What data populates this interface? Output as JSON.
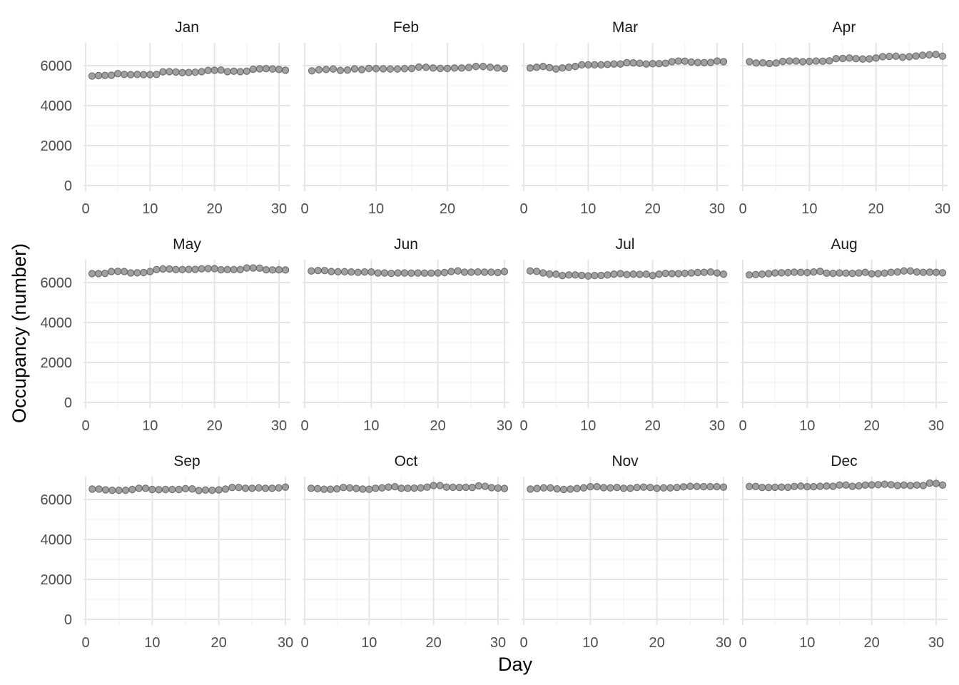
{
  "chart_data": {
    "type": "scatter",
    "xlabel": "Day",
    "ylabel": "Occupancy (number)",
    "ylim": [
      0,
      7000
    ],
    "y_ticks": [
      0,
      2000,
      4000,
      6000
    ],
    "grid": true,
    "point_color": "#808080",
    "point_edge_color": "#5a5a5a",
    "panels": [
      {
        "month": "Jan",
        "xlim": [
          0,
          31
        ],
        "x_ticks": [
          0,
          10,
          20,
          30
        ],
        "values": [
          5480,
          5500,
          5510,
          5520,
          5600,
          5560,
          5550,
          5560,
          5550,
          5550,
          5560,
          5690,
          5700,
          5680,
          5650,
          5660,
          5670,
          5700,
          5760,
          5770,
          5780,
          5700,
          5720,
          5700,
          5720,
          5820,
          5840,
          5850,
          5830,
          5810,
          5770
        ]
      },
      {
        "month": "Feb",
        "xlim": [
          0,
          28
        ],
        "x_ticks": [
          0,
          10,
          20
        ],
        "values": [
          5740,
          5790,
          5810,
          5830,
          5760,
          5780,
          5840,
          5800,
          5860,
          5850,
          5840,
          5830,
          5830,
          5850,
          5860,
          5930,
          5920,
          5880,
          5860,
          5860,
          5880,
          5880,
          5910,
          5960,
          5960,
          5920,
          5880,
          5850
        ]
      },
      {
        "month": "Mar",
        "xlim": [
          0,
          31
        ],
        "x_ticks": [
          0,
          10,
          20,
          30
        ],
        "values": [
          5880,
          5920,
          5960,
          5900,
          5830,
          5880,
          5920,
          5960,
          6040,
          6040,
          6040,
          6040,
          6060,
          6080,
          6080,
          6150,
          6140,
          6120,
          6080,
          6100,
          6100,
          6120,
          6200,
          6230,
          6220,
          6180,
          6160,
          6150,
          6160,
          6230,
          6200
        ]
      },
      {
        "month": "Apr",
        "xlim": [
          0,
          30
        ],
        "x_ticks": [
          0,
          10,
          20,
          30
        ],
        "values": [
          6200,
          6130,
          6140,
          6110,
          6130,
          6210,
          6230,
          6230,
          6200,
          6210,
          6230,
          6220,
          6240,
          6350,
          6360,
          6380,
          6350,
          6330,
          6340,
          6380,
          6450,
          6460,
          6470,
          6420,
          6450,
          6480,
          6520,
          6540,
          6560,
          6470
        ]
      },
      {
        "month": "May",
        "xlim": [
          0,
          31
        ],
        "x_ticks": [
          0,
          10,
          20,
          30
        ],
        "values": [
          6450,
          6450,
          6460,
          6550,
          6560,
          6550,
          6480,
          6490,
          6500,
          6550,
          6650,
          6680,
          6680,
          6650,
          6650,
          6660,
          6660,
          6690,
          6700,
          6700,
          6640,
          6650,
          6650,
          6650,
          6730,
          6730,
          6720,
          6640,
          6630,
          6640,
          6630
        ]
      },
      {
        "month": "Jun",
        "xlim": [
          0,
          30
        ],
        "x_ticks": [
          0,
          10,
          20,
          30
        ],
        "values": [
          6580,
          6600,
          6600,
          6550,
          6540,
          6540,
          6530,
          6510,
          6530,
          6530,
          6480,
          6480,
          6460,
          6480,
          6480,
          6470,
          6480,
          6470,
          6470,
          6480,
          6500,
          6550,
          6580,
          6520,
          6520,
          6530,
          6520,
          6520,
          6500,
          6550
        ]
      },
      {
        "month": "Jul",
        "xlim": [
          0,
          31
        ],
        "x_ticks": [
          0,
          10,
          20,
          30
        ],
        "values": [
          6580,
          6560,
          6480,
          6430,
          6420,
          6350,
          6380,
          6380,
          6360,
          6330,
          6350,
          6360,
          6380,
          6420,
          6450,
          6400,
          6420,
          6410,
          6420,
          6350,
          6420,
          6460,
          6450,
          6450,
          6460,
          6480,
          6500,
          6510,
          6530,
          6480,
          6420
        ]
      },
      {
        "month": "Aug",
        "xlim": [
          0,
          31
        ],
        "x_ticks": [
          0,
          10,
          20,
          30
        ],
        "values": [
          6380,
          6400,
          6420,
          6450,
          6480,
          6490,
          6500,
          6520,
          6510,
          6500,
          6530,
          6560,
          6470,
          6460,
          6480,
          6470,
          6460,
          6480,
          6510,
          6440,
          6450,
          6470,
          6510,
          6530,
          6580,
          6580,
          6530,
          6510,
          6520,
          6510,
          6490
        ]
      },
      {
        "month": "Sep",
        "xlim": [
          0,
          30
        ],
        "x_ticks": [
          0,
          10,
          20,
          30
        ],
        "values": [
          6520,
          6520,
          6480,
          6460,
          6460,
          6460,
          6500,
          6560,
          6560,
          6500,
          6490,
          6500,
          6500,
          6500,
          6540,
          6530,
          6450,
          6470,
          6460,
          6480,
          6520,
          6600,
          6600,
          6560,
          6560,
          6580,
          6560,
          6560,
          6580,
          6620
        ]
      },
      {
        "month": "Oct",
        "xlim": [
          0,
          31
        ],
        "x_ticks": [
          0,
          10,
          20,
          30
        ],
        "values": [
          6560,
          6540,
          6510,
          6510,
          6530,
          6600,
          6580,
          6550,
          6520,
          6510,
          6560,
          6580,
          6620,
          6640,
          6560,
          6560,
          6570,
          6580,
          6620,
          6700,
          6700,
          6620,
          6610,
          6600,
          6610,
          6600,
          6680,
          6660,
          6590,
          6570,
          6550
        ]
      },
      {
        "month": "Nov",
        "xlim": [
          0,
          30
        ],
        "x_ticks": [
          0,
          10,
          20,
          30
        ],
        "values": [
          6520,
          6550,
          6580,
          6580,
          6530,
          6500,
          6520,
          6550,
          6580,
          6640,
          6640,
          6590,
          6580,
          6600,
          6560,
          6560,
          6600,
          6620,
          6600,
          6560,
          6580,
          6580,
          6600,
          6630,
          6660,
          6650,
          6640,
          6640,
          6640,
          6620
        ]
      },
      {
        "month": "Dec",
        "xlim": [
          0,
          31
        ],
        "x_ticks": [
          0,
          10,
          20,
          30
        ],
        "values": [
          6650,
          6650,
          6600,
          6600,
          6610,
          6620,
          6610,
          6650,
          6670,
          6640,
          6640,
          6660,
          6670,
          6660,
          6720,
          6720,
          6660,
          6680,
          6720,
          6730,
          6740,
          6760,
          6740,
          6700,
          6720,
          6700,
          6720,
          6700,
          6820,
          6800,
          6720
        ]
      }
    ]
  }
}
